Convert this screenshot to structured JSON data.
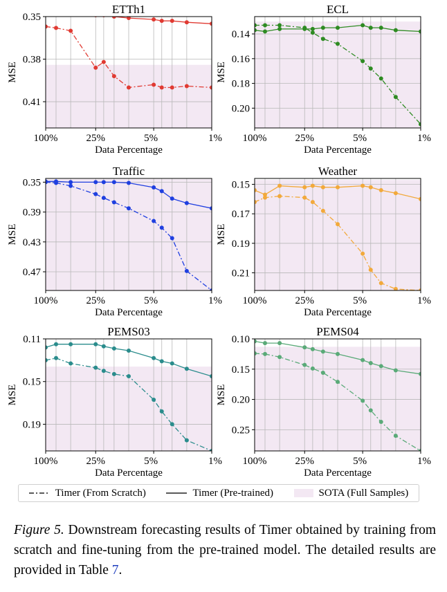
{
  "figure": {
    "xlabel": "Data Percentage",
    "ylabel": "MSE",
    "x_tick_labels": [
      "100%",
      "25%",
      "5%",
      "1%"
    ],
    "legend": {
      "scratch": "Timer (From Scratch)",
      "pretrained": "Timer (Pre-trained)",
      "sota": "SOTA (Full Samples)"
    },
    "sota_color": "#f3e8f3"
  },
  "caption": {
    "label": "Figure 5.",
    "text": "Downstream forecasting results of Timer obtained by training from scratch and fine-tuning from the pre-trained model. The detailed results are provided in Table",
    "ref": "7",
    "end": "."
  },
  "chart_data": [
    {
      "type": "line",
      "title": "ETTh1",
      "xlabel": "Data Percentage",
      "ylabel": "MSE",
      "color": "#e03a32",
      "x": [
        100,
        75,
        50,
        25,
        20,
        15,
        10,
        5,
        4,
        3,
        2,
        1
      ],
      "y_ticks": [
        0.35,
        0.38,
        0.41
      ],
      "ylim": [
        0.35,
        0.4285
      ],
      "y_inverted": true,
      "sota": 0.384,
      "series": [
        {
          "name": "Timer (From Scratch)",
          "style": "dashdot",
          "values": [
            0.357,
            0.358,
            0.36,
            0.386,
            0.382,
            0.392,
            0.4,
            0.398,
            0.4,
            0.4,
            0.399,
            0.4
          ]
        },
        {
          "name": "Timer (Pre-trained)",
          "style": "solid",
          "values": [
            0.348,
            0.348,
            0.347,
            0.349,
            0.349,
            0.35,
            0.351,
            0.352,
            0.353,
            0.353,
            0.354,
            0.355
          ]
        }
      ]
    },
    {
      "type": "line",
      "title": "ECL",
      "xlabel": "Data Percentage",
      "ylabel": "MSE",
      "color": "#2e8b22",
      "x": [
        100,
        75,
        50,
        25,
        20,
        15,
        10,
        5,
        4,
        3,
        2,
        1
      ],
      "y_ticks": [
        0.14,
        0.16,
        0.18,
        0.2
      ],
      "ylim": [
        0.126,
        0.216
      ],
      "y_inverted": true,
      "sota": 0.13,
      "series": [
        {
          "name": "Timer (From Scratch)",
          "style": "dashdot",
          "values": [
            0.133,
            0.133,
            0.133,
            0.135,
            0.139,
            0.144,
            0.148,
            0.162,
            0.168,
            0.176,
            0.191,
            0.213
          ]
        },
        {
          "name": "Timer (Pre-trained)",
          "style": "solid",
          "values": [
            0.137,
            0.138,
            0.136,
            0.136,
            0.136,
            0.135,
            0.135,
            0.133,
            0.135,
            0.135,
            0.137,
            0.138
          ]
        }
      ]
    },
    {
      "type": "line",
      "title": "Traffic",
      "xlabel": "Data Percentage",
      "ylabel": "MSE",
      "color": "#1f3fe0",
      "x": [
        100,
        75,
        50,
        25,
        20,
        15,
        10,
        5,
        4,
        3,
        2,
        1
      ],
      "y_ticks": [
        0.35,
        0.39,
        0.43,
        0.47
      ],
      "ylim": [
        0.345,
        0.495
      ],
      "y_inverted": true,
      "sota": 0.346,
      "series": [
        {
          "name": "Timer (From Scratch)",
          "style": "dashdot",
          "values": [
            0.35,
            0.351,
            0.355,
            0.366,
            0.371,
            0.377,
            0.385,
            0.402,
            0.411,
            0.425,
            0.469,
            0.495
          ]
        },
        {
          "name": "Timer (Pre-trained)",
          "style": "solid",
          "values": [
            0.349,
            0.349,
            0.35,
            0.35,
            0.35,
            0.35,
            0.351,
            0.357,
            0.362,
            0.372,
            0.378,
            0.385
          ]
        }
      ]
    },
    {
      "type": "line",
      "title": "Weather",
      "xlabel": "Data Percentage",
      "ylabel": "MSE",
      "color": "#f2a93b",
      "x": [
        100,
        75,
        50,
        25,
        20,
        15,
        10,
        5,
        4,
        3,
        2,
        1
      ],
      "y_ticks": [
        0.15,
        0.17,
        0.19,
        0.21
      ],
      "ylim": [
        0.146,
        0.222
      ],
      "y_inverted": true,
      "sota": 0.147,
      "series": [
        {
          "name": "Timer (From Scratch)",
          "style": "dashdot",
          "values": [
            0.162,
            0.159,
            0.158,
            0.159,
            0.162,
            0.168,
            0.177,
            0.197,
            0.208,
            0.217,
            0.221,
            0.222
          ]
        },
        {
          "name": "Timer (Pre-trained)",
          "style": "solid",
          "values": [
            0.154,
            0.157,
            0.151,
            0.152,
            0.151,
            0.152,
            0.152,
            0.151,
            0.152,
            0.154,
            0.156,
            0.16
          ]
        }
      ]
    },
    {
      "type": "line",
      "title": "PEMS03",
      "xlabel": "Data Percentage",
      "ylabel": "MSE",
      "color": "#2a8c8c",
      "x": [
        100,
        75,
        50,
        25,
        20,
        15,
        10,
        5,
        4,
        3,
        2,
        1
      ],
      "y_ticks": [
        0.11,
        0.15,
        0.19
      ],
      "ylim": [
        0.11,
        0.215
      ],
      "y_inverted": true,
      "sota": 0.136,
      "series": [
        {
          "name": "Timer (From Scratch)",
          "style": "dashdot",
          "values": [
            0.13,
            0.128,
            0.133,
            0.137,
            0.14,
            0.143,
            0.145,
            0.167,
            0.178,
            0.19,
            0.205,
            0.215
          ]
        },
        {
          "name": "Timer (Pre-trained)",
          "style": "solid",
          "values": [
            0.118,
            0.115,
            0.115,
            0.115,
            0.117,
            0.119,
            0.121,
            0.128,
            0.131,
            0.133,
            0.138,
            0.145
          ]
        }
      ]
    },
    {
      "type": "line",
      "title": "PEMS04",
      "xlabel": "Data Percentage",
      "ylabel": "MSE",
      "color": "#5aaa78",
      "x": [
        100,
        75,
        50,
        25,
        20,
        15,
        10,
        5,
        4,
        3,
        2,
        1
      ],
      "y_ticks": [
        0.1,
        0.15,
        0.2,
        0.25
      ],
      "ylim": [
        0.1,
        0.285
      ],
      "y_inverted": true,
      "sota": 0.113,
      "series": [
        {
          "name": "Timer (From Scratch)",
          "style": "dashdot",
          "values": [
            0.124,
            0.125,
            0.13,
            0.143,
            0.149,
            0.156,
            0.171,
            0.202,
            0.218,
            0.237,
            0.26,
            0.285
          ]
        },
        {
          "name": "Timer (Pre-trained)",
          "style": "solid",
          "values": [
            0.104,
            0.107,
            0.107,
            0.114,
            0.117,
            0.121,
            0.125,
            0.135,
            0.14,
            0.145,
            0.152,
            0.158
          ]
        }
      ]
    }
  ]
}
